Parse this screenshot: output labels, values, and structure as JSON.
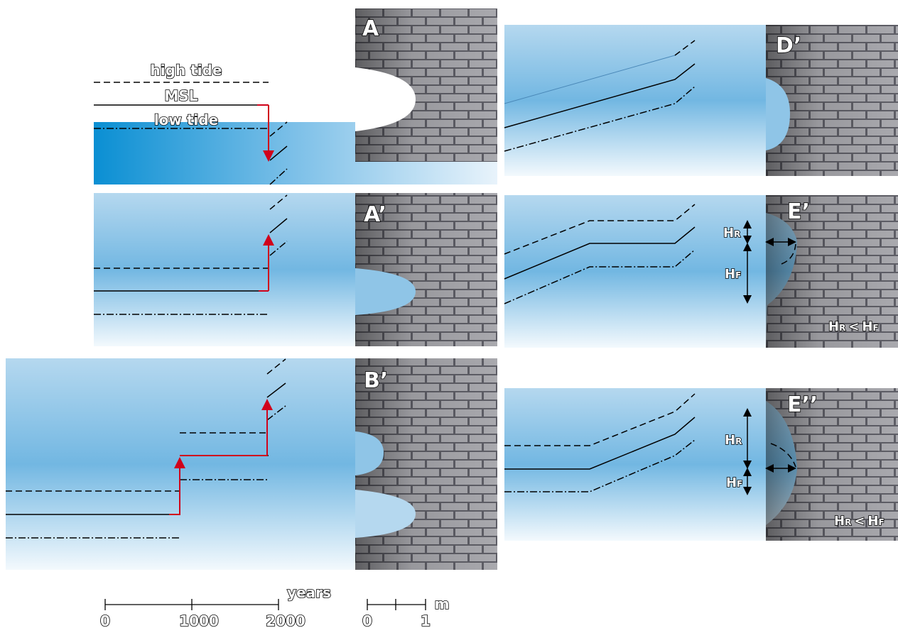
{
  "legend": {
    "high_tide": "high tide",
    "msl": "MSL",
    "low_tide": "low tide"
  },
  "panels": [
    {
      "label": "A"
    },
    {
      "label": "A’"
    },
    {
      "label": "B’"
    },
    {
      "label": "D’"
    },
    {
      "label": "E’"
    },
    {
      "label": "E’’"
    }
  ],
  "heights": {
    "h": "H",
    "r": "R",
    "f": "F",
    "less": "<"
  },
  "scale": {
    "time": {
      "unit": "years",
      "ticks": [
        0,
        1000,
        2000
      ]
    },
    "length": {
      "unit": "m",
      "ticks": [
        0,
        1
      ]
    }
  }
}
